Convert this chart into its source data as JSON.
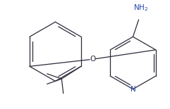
{
  "bg_color": "#ffffff",
  "line_color": "#2b2b3b",
  "label_color_nh2": "#2244aa",
  "label_color_n": "#2244aa",
  "label_color_o": "#2b2b3b",
  "figsize": [
    2.41,
    1.55
  ],
  "dpi": 100
}
